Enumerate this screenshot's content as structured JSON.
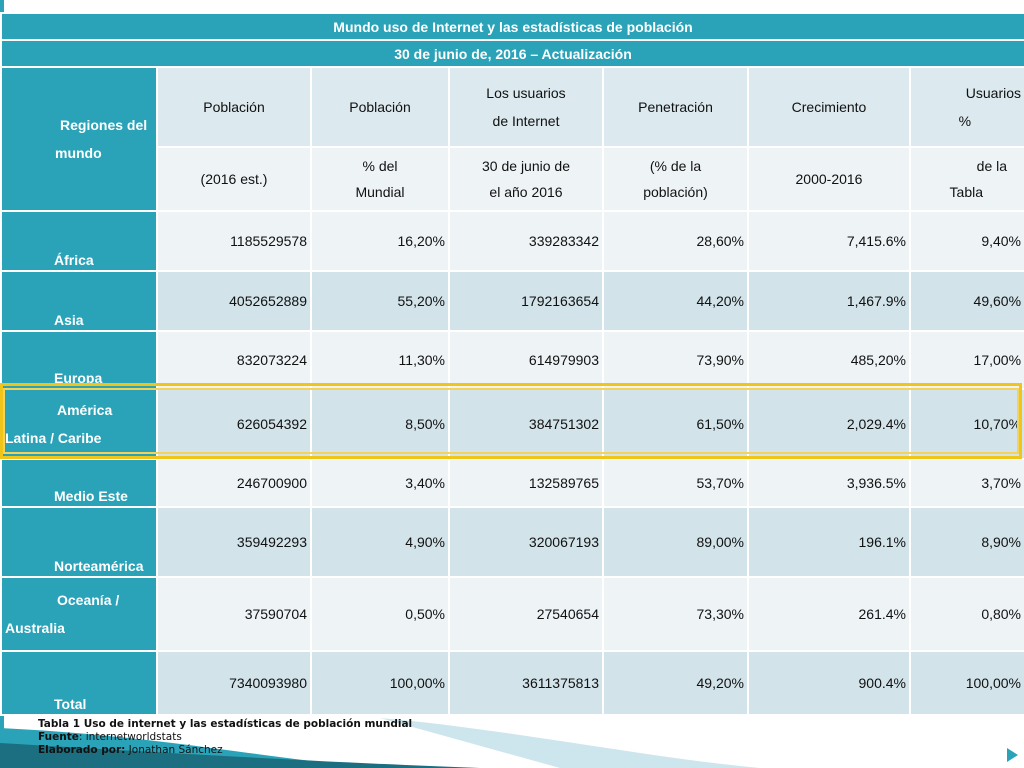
{
  "table": {
    "title": "Mundo uso de Internet y las estadísticas de población",
    "subtitle": "30 de junio de, 2016 – Actualización",
    "region_header": [
      "Regiones del",
      "mundo"
    ],
    "headers_row1": [
      "Población",
      "Población",
      [
        "Los usuarios",
        "de Internet"
      ],
      "Penetración",
      "Crecimiento",
      [
        "Usuarios",
        "%"
      ]
    ],
    "headers_row2": [
      "(2016 est.)",
      [
        "% del",
        "Mundial"
      ],
      [
        "30 de junio de",
        "el año 2016"
      ],
      [
        "(% de la",
        "población)"
      ],
      "2000-2016",
      [
        "de la",
        "Tabla"
      ]
    ],
    "rows": [
      {
        "region": [
          "África"
        ],
        "values": [
          "1185529578",
          "16,20%",
          "339283342",
          "28,60%",
          "7,415.6%",
          "9,40%"
        ]
      },
      {
        "region": [
          "Asia"
        ],
        "values": [
          "4052652889",
          "55,20%",
          "1792163654",
          "44,20%",
          "1,467.9%",
          "49,60%"
        ]
      },
      {
        "region": [
          "Europa"
        ],
        "values": [
          "832073224",
          "11,30%",
          "614979903",
          "73,90%",
          "485,20%",
          "17,00%"
        ]
      },
      {
        "region": [
          "América",
          "Latina / Caribe"
        ],
        "values": [
          "626054392",
          "8,50%",
          "384751302",
          "61,50%",
          "2,029.4%",
          "10,70%"
        ]
      },
      {
        "region": [
          "Medio Este"
        ],
        "values": [
          "246700900",
          "3,40%",
          "132589765",
          "53,70%",
          "3,936.5%",
          "3,70%"
        ]
      },
      {
        "region": [
          "Norteamérica"
        ],
        "values": [
          "359492293",
          "4,90%",
          "320067193",
          "89,00%",
          "196.1%",
          "8,90%"
        ]
      },
      {
        "region": [
          "Oceanía /",
          "Australia"
        ],
        "values": [
          "37590704",
          "0,50%",
          "27540654",
          "73,30%",
          "261.4%",
          "0,80%"
        ]
      },
      {
        "region": [
          "Total"
        ],
        "values": [
          "7340093980",
          "100,00%",
          "3611375813",
          "49,20%",
          "900.4%",
          "100,00%"
        ]
      }
    ]
  },
  "caption": {
    "line1": "Tabla 1 Uso de internet y las estadísticas de población mundial",
    "fuente_label": "Fuente",
    "fuente_value": ": internetworldstats",
    "elaborado_label": "Elaborado por:",
    "elaborado_value": " Jonathan Sánchez"
  },
  "colors": {
    "accent": "#2aa3b8",
    "highlight": "#f0c419"
  }
}
